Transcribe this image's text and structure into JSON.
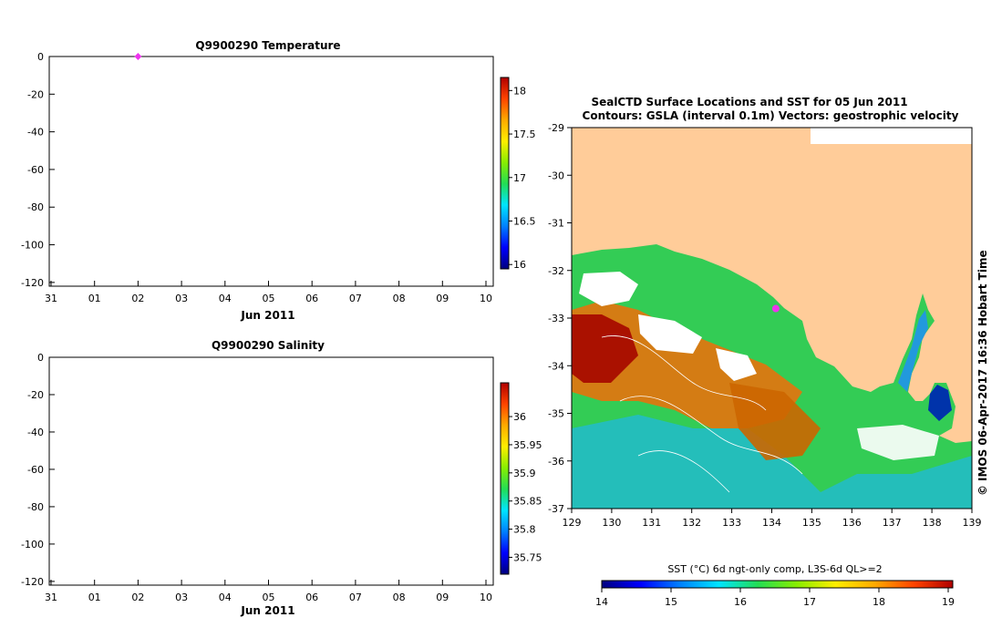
{
  "colors": {
    "land": "#ffcc99",
    "marker": "#ee33ee",
    "axis": "#000000",
    "cmap": [
      "#00007f",
      "#0000ff",
      "#0080ff",
      "#00e5ff",
      "#22dd55",
      "#88ee00",
      "#ffee00",
      "#ffaa00",
      "#ff4400",
      "#b00000"
    ]
  },
  "chart_data": [
    {
      "id": "temperature_profile",
      "type": "scatter",
      "title": "Q9900290  Temperature",
      "xlabel": "Jun 2011",
      "x_tick_labels": [
        "31",
        "01",
        "02",
        "03",
        "04",
        "05",
        "06",
        "07",
        "08",
        "09",
        "10"
      ],
      "y_tick_labels": [
        "0",
        "-20",
        "-40",
        "-60",
        "-80",
        "-100",
        "-120"
      ],
      "ylim": [
        -122,
        0
      ],
      "points": [
        {
          "x": "02",
          "y": 0
        }
      ],
      "colorbar": {
        "ticks": [
          "18",
          "17.5",
          "17",
          "16.5",
          "16"
        ],
        "range": [
          15.95,
          18.15
        ]
      }
    },
    {
      "id": "salinity_profile",
      "type": "scatter",
      "title": "Q9900290  Salinity",
      "xlabel": "Jun 2011",
      "x_tick_labels": [
        "31",
        "01",
        "02",
        "03",
        "04",
        "05",
        "06",
        "07",
        "08",
        "09",
        "10"
      ],
      "y_tick_labels": [
        "0",
        "-20",
        "-40",
        "-60",
        "-80",
        "-100",
        "-120"
      ],
      "ylim": [
        -122,
        0
      ],
      "points": [],
      "colorbar": {
        "ticks": [
          "36",
          "35.95",
          "35.9",
          "35.85",
          "35.8",
          "35.75"
        ],
        "range": [
          35.72,
          36.06
        ]
      }
    },
    {
      "id": "sst_map",
      "type": "heatmap",
      "title": "SealCTD Surface Locations and SST for 05 Jun 2011",
      "subtitle": "Contours: GSLA (interval 0.1m) Vectors: geostrophic velocity",
      "x_tick_labels": [
        "129",
        "130",
        "131",
        "132",
        "133",
        "134",
        "135",
        "136",
        "137",
        "138",
        "139"
      ],
      "y_tick_labels": [
        "-29",
        "-30",
        "-31",
        "-32",
        "-33",
        "-34",
        "-35",
        "-36",
        "-37"
      ],
      "xlim": [
        129,
        139
      ],
      "ylim": [
        -37,
        -29
      ],
      "seal_location": {
        "lon": 134.1,
        "lat": -32.8
      },
      "colorbar": {
        "label": "SST (°C) 6d ngt-only comp, L3S-6d QL>=2",
        "ticks": [
          "14",
          "15",
          "16",
          "17",
          "18",
          "19"
        ],
        "range": [
          14,
          19
        ]
      },
      "credit": "IMOS 06-Apr-2017 16:36 Hobart Time",
      "copyright_symbol": "©"
    }
  ]
}
